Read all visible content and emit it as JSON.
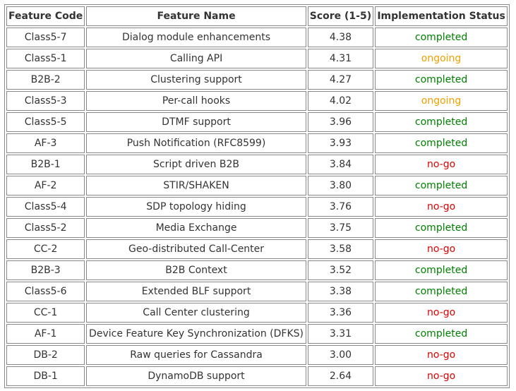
{
  "table": {
    "headers": [
      "Feature Code",
      "Feature Name",
      "Score (1-5)",
      "Implementation Status"
    ],
    "rows": [
      {
        "code": "Class5-7",
        "name": "Dialog module enhancements",
        "score": "4.38",
        "status": "completed",
        "status_color": "#008000"
      },
      {
        "code": "Class5-1",
        "name": "Calling API",
        "score": "4.31",
        "status": "ongoing",
        "status_color": "#f0a000"
      },
      {
        "code": "B2B-2",
        "name": "Clustering support",
        "score": "4.27",
        "status": "completed",
        "status_color": "#008000"
      },
      {
        "code": "Class5-3",
        "name": "Per-call hooks",
        "score": "4.02",
        "status": "ongoing",
        "status_color": "#f0a000"
      },
      {
        "code": "Class5-5",
        "name": "DTMF support",
        "score": "3.96",
        "status": "completed",
        "status_color": "#008000"
      },
      {
        "code": "AF-3",
        "name": "Push Notification (RFC8599)",
        "score": "3.93",
        "status": "completed",
        "status_color": "#008000"
      },
      {
        "code": "B2B-1",
        "name": "Script driven B2B",
        "score": "3.84",
        "status": "no-go",
        "status_color": "#e00000"
      },
      {
        "code": "AF-2",
        "name": "STIR/SHAKEN",
        "score": "3.80",
        "status": "completed",
        "status_color": "#008000"
      },
      {
        "code": "Class5-4",
        "name": "SDP topology hiding",
        "score": "3.76",
        "status": "no-go",
        "status_color": "#e00000"
      },
      {
        "code": "Class5-2",
        "name": "Media Exchange",
        "score": "3.75",
        "status": "completed",
        "status_color": "#008000"
      },
      {
        "code": "CC-2",
        "name": "Geo-distributed Call-Center",
        "score": "3.58",
        "status": "no-go",
        "status_color": "#e00000"
      },
      {
        "code": "B2B-3",
        "name": "B2B Context",
        "score": "3.52",
        "status": "completed",
        "status_color": "#008000"
      },
      {
        "code": "Class5-6",
        "name": "Extended BLF support",
        "score": "3.38",
        "status": "completed",
        "status_color": "#008000"
      },
      {
        "code": "CC-1",
        "name": "Call Center clustering",
        "score": "3.36",
        "status": "no-go",
        "status_color": "#e00000"
      },
      {
        "code": "AF-1",
        "name": "Device Feature Key Synchronization (DFKS)",
        "score": "3.31",
        "status": "completed",
        "status_color": "#008000"
      },
      {
        "code": "DB-2",
        "name": "Raw queries for Cassandra",
        "score": "3.00",
        "status": "no-go",
        "status_color": "#e00000"
      },
      {
        "code": "DB-1",
        "name": "DynamoDB support",
        "score": "2.64",
        "status": "no-go",
        "status_color": "#e00000"
      }
    ]
  }
}
